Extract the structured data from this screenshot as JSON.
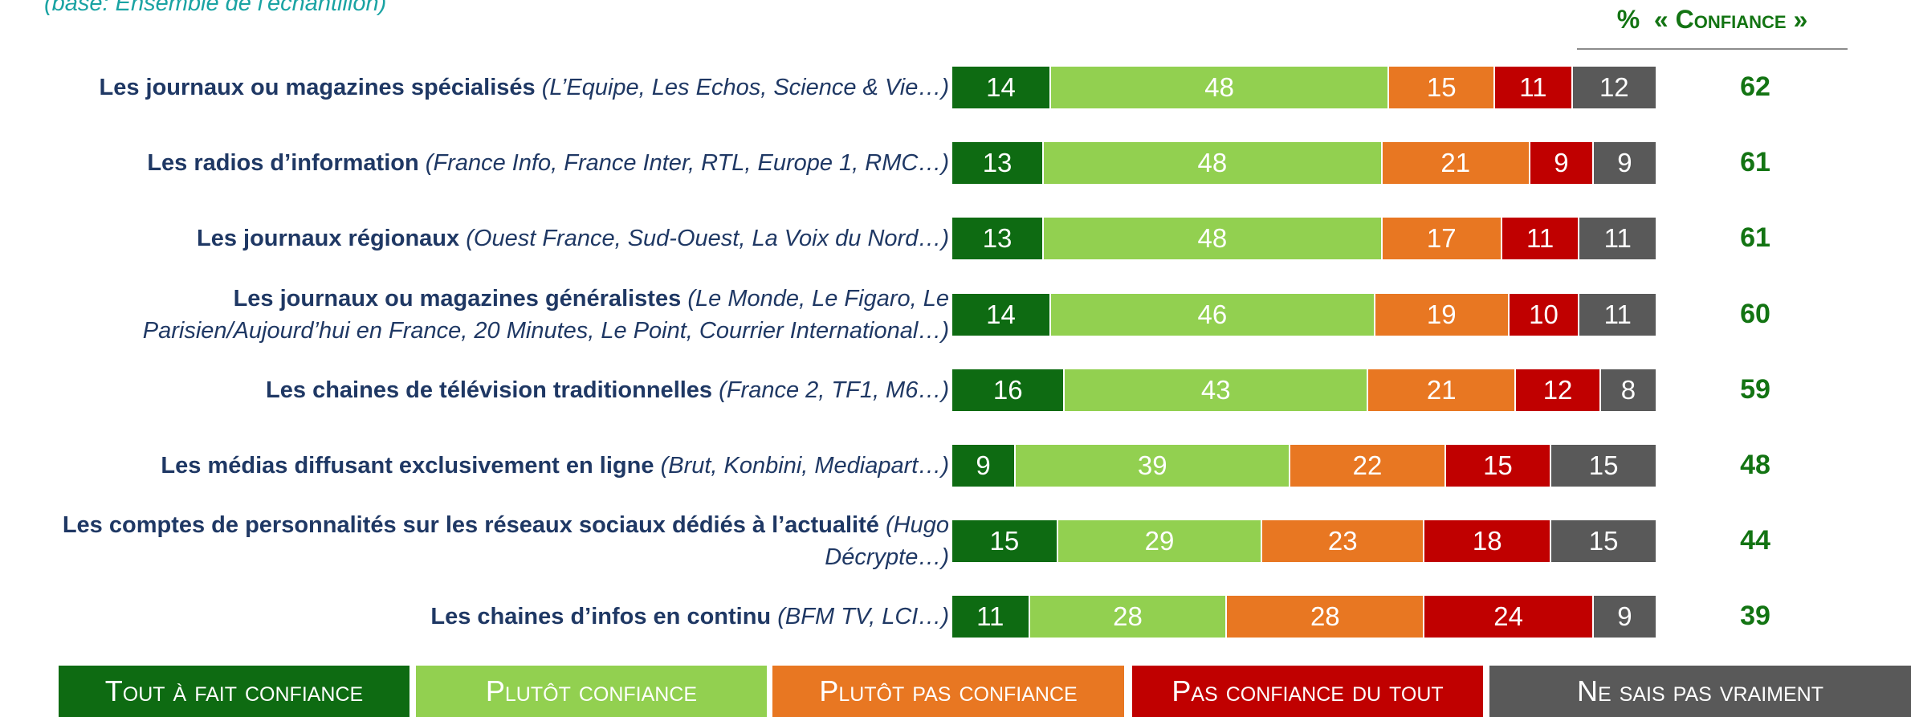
{
  "chart_data": {
    "type": "stacked-bar-horizontal",
    "subtitle": "(base: Ensemble de l'échantillon)",
    "categories": [
      "Les journaux ou magazines spécialisés",
      "Les radios d’information",
      "Les journaux régionaux",
      "Les journaux ou magazines généralistes",
      "Les chaines de télévision traditionnelles",
      "Les médias diffusant exclusivement en ligne",
      "Les comptes de personnalités sur les réseaux sociaux dédiés à l’actualité",
      "Les chaines d’infos en continu"
    ],
    "category_notes": [
      "(L’Equipe, Les Echos, Science & Vie…)",
      "(France Info, France Inter, RTL, Europe 1, RMC…)",
      "(Ouest France, Sud-Ouest, La Voix du Nord…)",
      "(Le Monde, Le Figaro, Le Parisien/Aujourd’hui en France, 20 Minutes, Le Point, Courrier International…)",
      "(France 2, TF1, M6…)",
      "(Brut, Konbini, Mediapart…)",
      "(Hugo Décrypte…)",
      "(BFM TV, LCI…)"
    ],
    "xlim": [
      0,
      100
    ],
    "series": [
      {
        "name": "Tout à fait confiance",
        "color": "#0e6b12",
        "values": [
          14,
          13,
          13,
          14,
          16,
          9,
          15,
          11
        ]
      },
      {
        "name": "Plutôt confiance",
        "color": "#92d050",
        "values": [
          48,
          48,
          48,
          46,
          43,
          39,
          29,
          28
        ]
      },
      {
        "name": "Plutôt pas confiance",
        "color": "#e87722",
        "values": [
          15,
          21,
          17,
          19,
          21,
          22,
          23,
          28
        ]
      },
      {
        "name": "Pas confiance du tout",
        "color": "#c00000",
        "values": [
          11,
          9,
          11,
          10,
          12,
          15,
          18,
          24
        ]
      },
      {
        "name": "Ne sais pas vraiment",
        "color": "#595959",
        "values": [
          12,
          9,
          11,
          11,
          8,
          15,
          15,
          9
        ]
      }
    ],
    "confidence_title": "%  « Confiance »",
    "confidence_values": [
      62,
      61,
      61,
      60,
      59,
      48,
      44,
      39
    ]
  }
}
